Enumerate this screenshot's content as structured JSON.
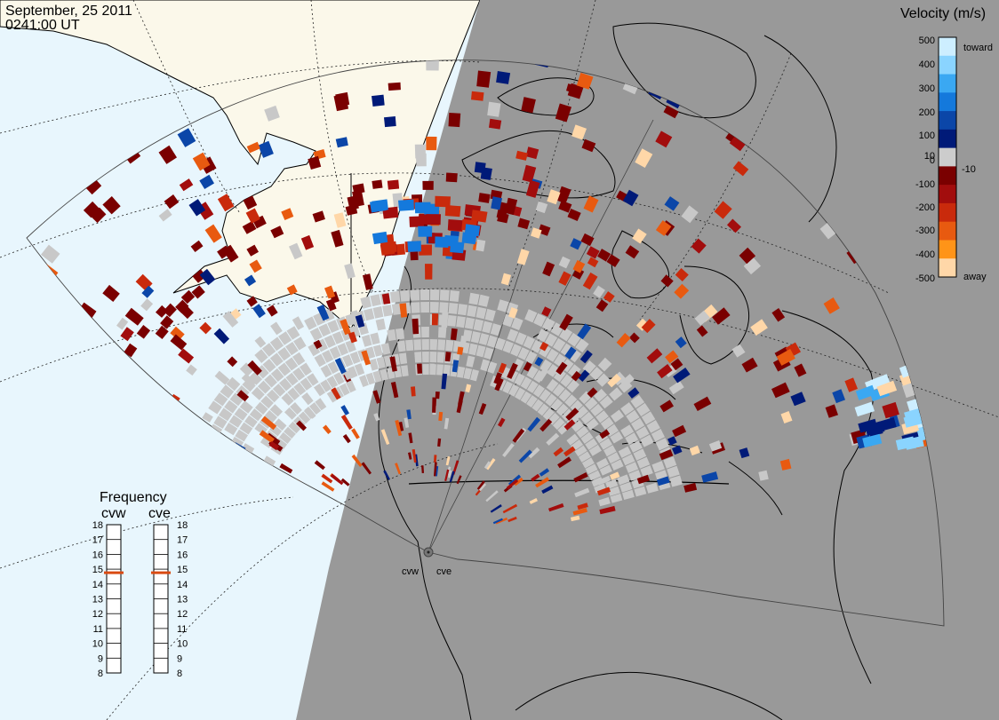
{
  "title": {
    "date": "September, 25 2011",
    "time": "0241:00 UT"
  },
  "colors": {
    "ocean": "#e8f6fd",
    "land_day": "#fbf8ea",
    "night": "#999999",
    "ground_scatter": "#c8c8c8"
  },
  "colorbar": {
    "title": "Velocity (m/s)",
    "ticks": [
      "500",
      "400",
      "300",
      "200",
      "100",
      "10",
      "0",
      "-10",
      "-100",
      "-200",
      "-300",
      "-400",
      "-500"
    ],
    "toward_label": "toward",
    "away_label": "away",
    "stops": [
      "#cdeeff",
      "#8ad4ff",
      "#3aa8f2",
      "#1479dc",
      "#0b46a8",
      "#001a78",
      "#cccccc",
      "#7a0000",
      "#a20d0d",
      "#c92a0c",
      "#e85a10",
      "#ff9418",
      "#ffd7a8"
    ]
  },
  "frequency": {
    "title": "Frequency",
    "radars": [
      "cvw",
      "cve"
    ],
    "ticks": [
      "18",
      "17",
      "16",
      "15",
      "14",
      "13",
      "12",
      "11",
      "10",
      "9",
      "8"
    ],
    "values": [
      15,
      15
    ],
    "range": [
      8,
      18
    ],
    "marker_color": "#d94a12"
  },
  "radar_sites": [
    "cvw",
    "cve"
  ]
}
